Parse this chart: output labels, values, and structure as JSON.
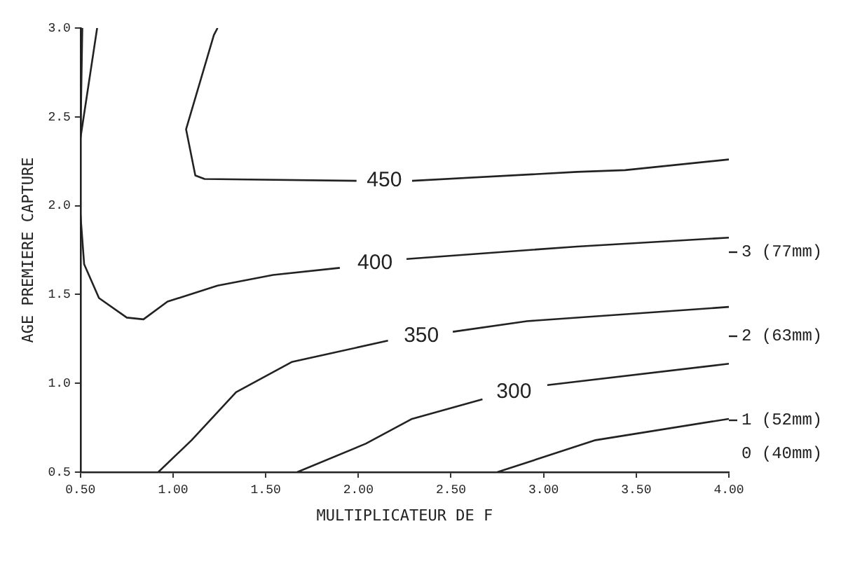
{
  "chart_data": {
    "type": "line",
    "xlabel": "MULTIPLICATEUR DE F",
    "ylabel": "AGE PREMIERE CAPTURE",
    "xlim": [
      0.5,
      4.0
    ],
    "xticks": [
      {
        "value": 0.5,
        "label": "0.50"
      },
      {
        "value": 1.0,
        "label": "1.00"
      },
      {
        "value": 1.5,
        "label": "1.50"
      },
      {
        "value": 2.0,
        "label": "2.00"
      },
      {
        "value": 2.5,
        "label": "2.50"
      },
      {
        "value": 3.0,
        "label": "3.00"
      },
      {
        "value": 3.5,
        "label": "3.50"
      },
      {
        "value": 4.0,
        "label": "4.00"
      }
    ],
    "ylim": [
      0.5,
      3.0
    ],
    "yticks": [
      0.5,
      {
        "value": 1.0,
        "label": "1.0"
      },
      1.5,
      {
        "value": 2.0,
        "label": "2.0"
      },
      2.5,
      {
        "value": 3.0,
        "label": "3.0"
      }
    ],
    "annotations": [
      "3 (77mm)",
      "2 (63mm)",
      "1 (52mm)",
      "0 (40mm)"
    ],
    "grid": false,
    "legend": false,
    "marker": "none",
    "line_style": "solid",
    "series": [
      {
        "name": "450",
        "color": "#222222",
        "x": [
          1.24,
          1.22,
          1.07,
          1.12,
          1.17,
          1.99,
          2.14,
          2.29,
          3.18,
          3.44,
          4.0
        ],
        "values": [
          3.0,
          2.96,
          2.43,
          2.17,
          2.15,
          2.14,
          null,
          2.14,
          2.19,
          2.2,
          2.26
        ]
      },
      {
        "name": "400",
        "color": "#222222",
        "x": [
          0.5,
          0.52,
          0.6,
          0.75,
          0.84,
          0.97,
          1.24,
          1.54,
          1.9,
          2.09,
          2.26,
          3.18,
          4.0
        ],
        "values": [
          1.95,
          1.67,
          1.48,
          1.37,
          1.36,
          1.46,
          1.55,
          1.61,
          1.65,
          null,
          1.7,
          1.77,
          1.82
        ]
      },
      {
        "name": "350",
        "color": "#222222",
        "x": [
          0.92,
          1.1,
          1.34,
          1.64,
          2.16,
          2.34,
          2.51,
          2.91,
          4.0
        ],
        "values": [
          0.5,
          0.68,
          0.95,
          1.12,
          1.24,
          null,
          1.29,
          1.35,
          1.43
        ]
      },
      {
        "name": "300",
        "color": "#222222",
        "x": [
          1.67,
          2.04,
          2.29,
          2.67,
          2.84,
          3.02,
          4.0
        ],
        "values": [
          0.5,
          0.66,
          0.8,
          0.91,
          null,
          0.99,
          1.11
        ]
      },
      {
        "color": "#222222",
        "x": [
          2.75,
          3.28,
          4.0
        ],
        "values": [
          0.5,
          0.68,
          0.8
        ]
      },
      {
        "color": "#222222",
        "x": [
          0.51,
          0.5,
          0.59
        ],
        "values": [
          3.0,
          2.38,
          3.0
        ]
      }
    ]
  }
}
